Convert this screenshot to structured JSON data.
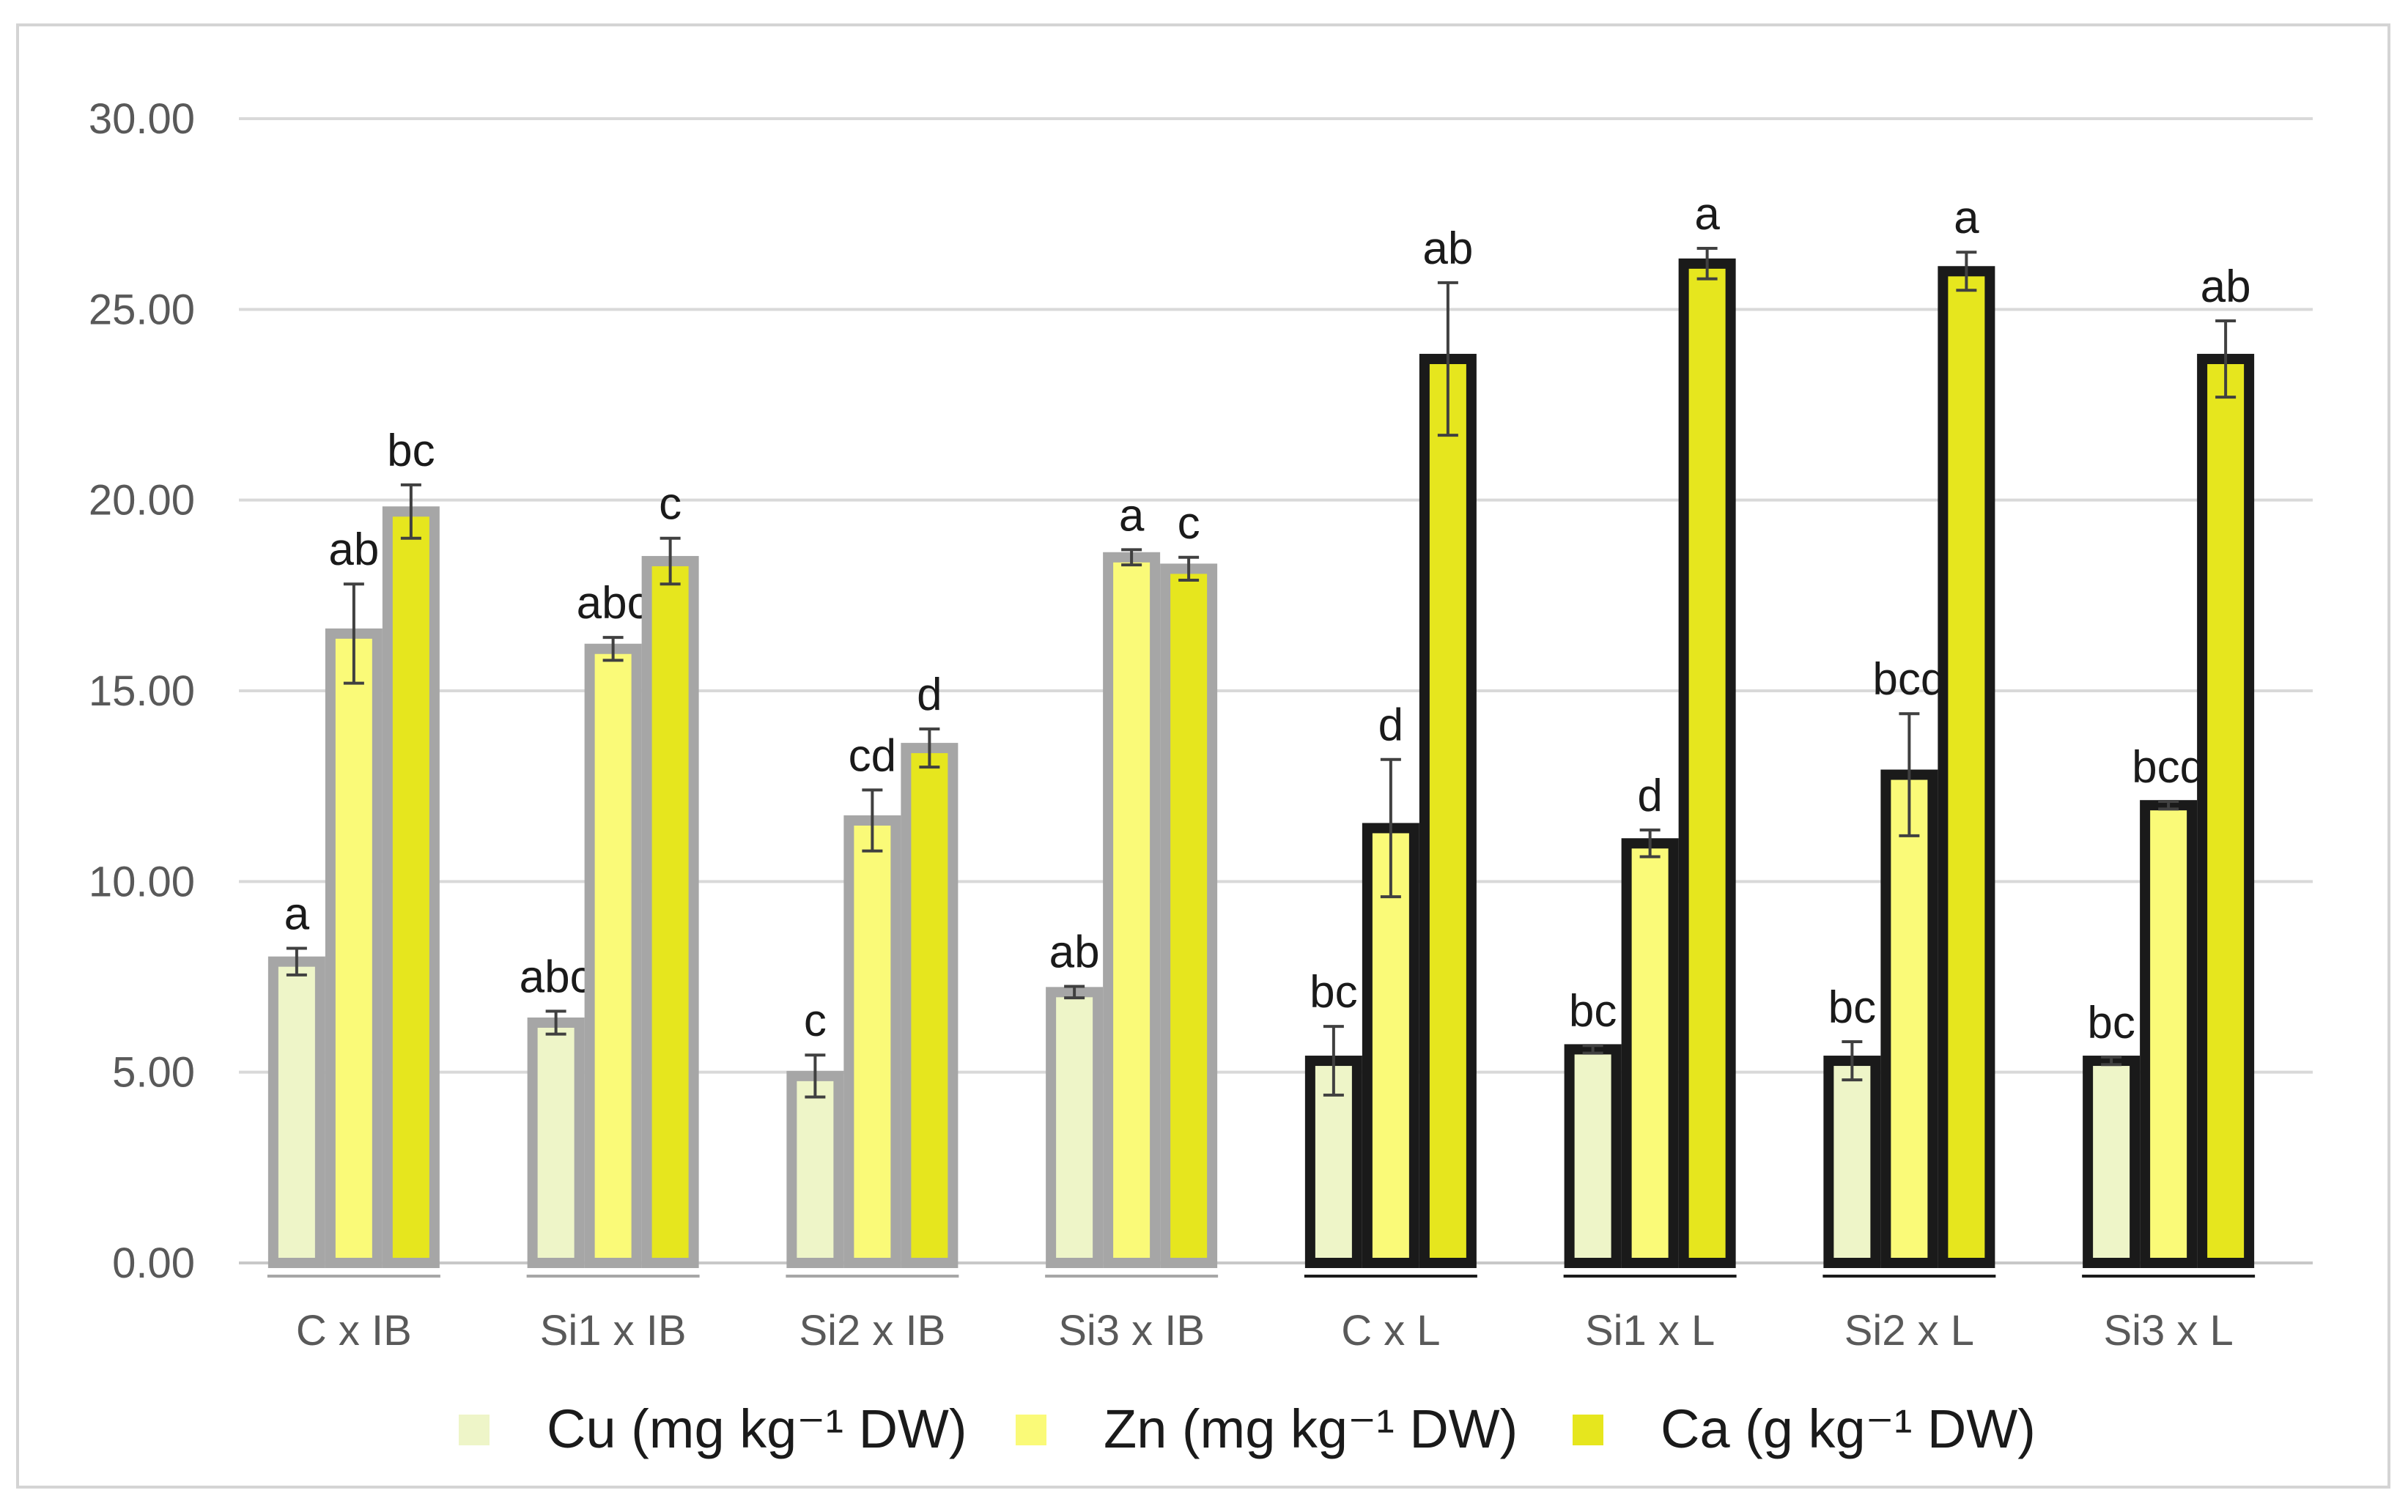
{
  "chart_data": {
    "type": "bar",
    "title": "",
    "xlabel": "",
    "ylabel": "",
    "ylim": [
      0,
      30
    ],
    "yticks": [
      "0.00",
      "5.00",
      "10.00",
      "15.00",
      "20.00",
      "25.00",
      "30.00"
    ],
    "grid": true,
    "legend_position": "bottom",
    "categories": [
      "C x IB",
      "Si1 x IB",
      "Si2 x IB",
      "Si3 x IB",
      "C x L",
      "Si1 x L",
      "Si2 x L",
      "Si3 x L"
    ],
    "group_outline": [
      "gray",
      "gray",
      "gray",
      "gray",
      "black",
      "black",
      "black",
      "black"
    ],
    "series": [
      {
        "name": "Cu (mg kg⁻¹ DW)",
        "color": "#eef5c8",
        "values": [
          7.9,
          6.3,
          4.9,
          7.1,
          5.3,
          5.6,
          5.3,
          5.3
        ],
        "errors": [
          0.35,
          0.3,
          0.55,
          0.15,
          0.9,
          0.1,
          0.5,
          0.1
        ],
        "labels": [
          "a",
          "abc",
          "c",
          "ab",
          "bc",
          "bc",
          "bc",
          "bc"
        ]
      },
      {
        "name": "Zn (mg kg⁻¹ DW)",
        "color": "#fafa78",
        "values": [
          16.5,
          16.1,
          11.6,
          18.5,
          11.4,
          11.0,
          12.8,
          12.0
        ],
        "errors": [
          1.3,
          0.3,
          0.8,
          0.2,
          1.8,
          0.35,
          1.6,
          0.1
        ],
        "labels": [
          "ab",
          "abc",
          "cd",
          "a",
          "d",
          "d",
          "bcd",
          "bcd"
        ]
      },
      {
        "name": "Ca (g kg⁻¹ DW)",
        "color": "#e6e61e",
        "values": [
          19.7,
          18.4,
          13.5,
          18.2,
          23.7,
          26.2,
          26.0,
          23.7
        ],
        "errors": [
          0.7,
          0.6,
          0.5,
          0.3,
          2.0,
          0.4,
          0.5,
          1.0
        ],
        "labels": [
          "bc",
          "c",
          "d",
          "c",
          "ab",
          "a",
          "a",
          "ab"
        ]
      }
    ]
  }
}
